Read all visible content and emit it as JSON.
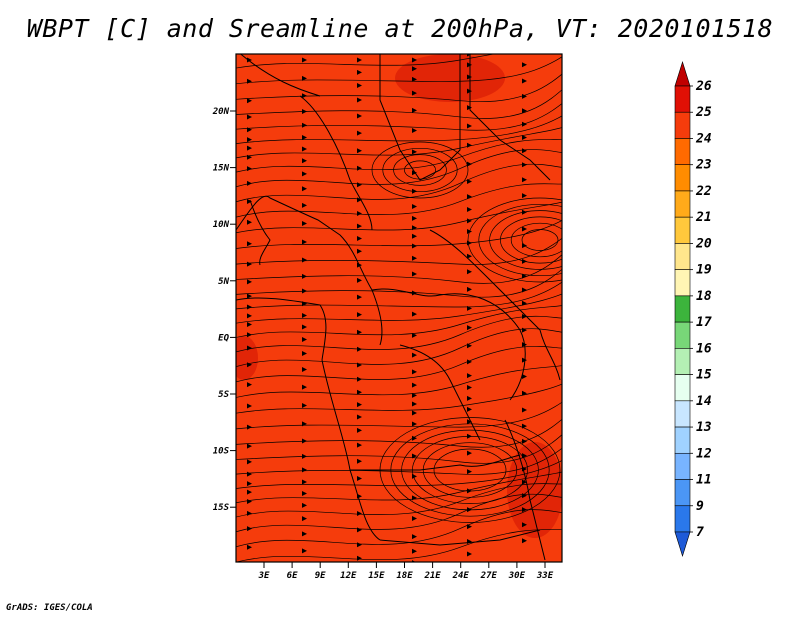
{
  "title": "WBPT [C] and Sreamline at 200hPa, VT: 2020101518",
  "credit": "GrADS: IGES/COLA",
  "map": {
    "lat_ticks": [
      "20N",
      "15N",
      "10N",
      "5N",
      "EQ",
      "5S",
      "10S",
      "15S"
    ],
    "lon_ticks": [
      "3E",
      "6E",
      "9E",
      "12E",
      "15E",
      "18E",
      "21E",
      "24E",
      "27E",
      "30E",
      "33E"
    ],
    "field_color": "#f53c0c",
    "warm_patch_color": "#d91e06",
    "streamline_color": "#000000"
  },
  "colorbar": {
    "labels": [
      "26",
      "25",
      "24",
      "23",
      "22",
      "21",
      "20",
      "19",
      "18",
      "17",
      "16",
      "15",
      "14",
      "13",
      "12",
      "11",
      "9",
      "7"
    ],
    "colors": [
      "#c00000",
      "#e01005",
      "#f53c0c",
      "#ff6a00",
      "#ff8c00",
      "#ffaa1a",
      "#ffc83c",
      "#ffe68c",
      "#fff5b4",
      "#3cb43c",
      "#78d778",
      "#b4f0b4",
      "#e6fff0",
      "#c8e6ff",
      "#a0d2ff",
      "#78b4ff",
      "#4b96f5",
      "#2a78eb",
      "#1e5ad7"
    ]
  }
}
